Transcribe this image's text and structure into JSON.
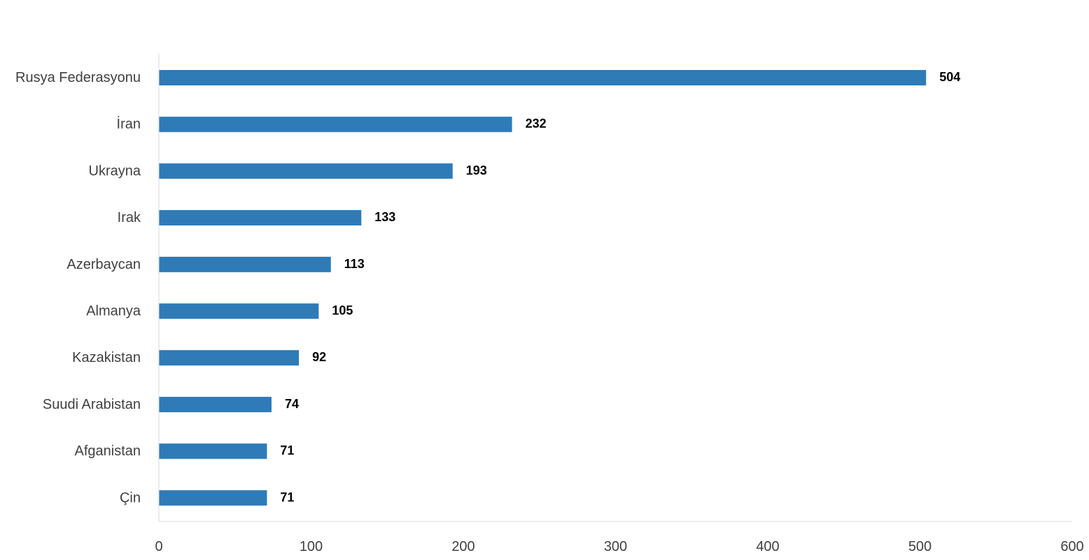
{
  "chart_data": {
    "type": "bar",
    "orientation": "horizontal",
    "categories": [
      "Rusya Federasyonu",
      "İran",
      "Ukrayna",
      "Irak",
      "Azerbaycan",
      "Almanya",
      "Kazakistan",
      "Suudi Arabistan",
      "Afganistan",
      "Çin"
    ],
    "values": [
      504,
      232,
      193,
      133,
      113,
      105,
      92,
      74,
      71,
      71
    ],
    "xlim": [
      0,
      600
    ],
    "xticks": [
      0,
      100,
      200,
      300,
      400,
      500,
      600
    ],
    "bar_color": "#2e7bb7",
    "axis_color": "#d9d9d9",
    "grid": false,
    "legend": "none"
  }
}
